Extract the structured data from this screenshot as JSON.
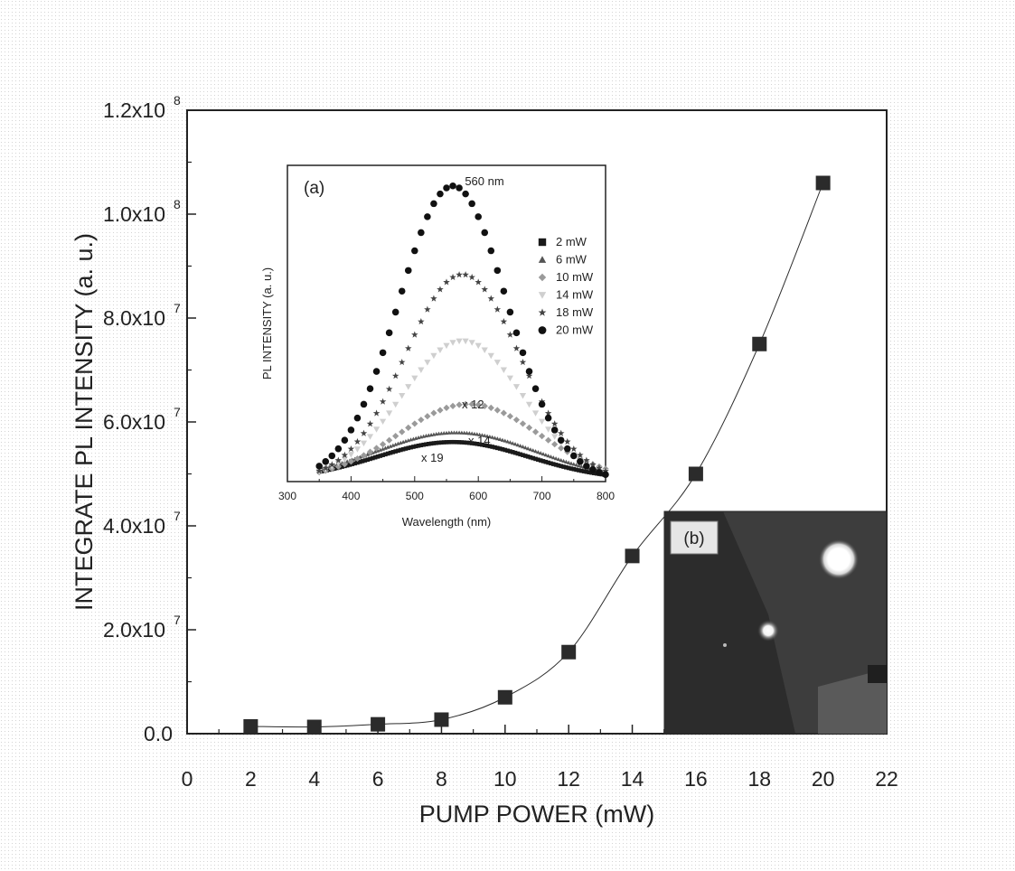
{
  "chart_data": [
    {
      "type": "scatter",
      "xlabel": "PUMP POWER (mW)",
      "ylabel": "INTEGRATE PL INTENSITY (a. u.)",
      "xlim": [
        0,
        22
      ],
      "ylim": [
        0,
        120000000
      ],
      "xticks": [
        "0",
        "2",
        "4",
        "6",
        "8",
        "10",
        "12",
        "14",
        "16",
        "18",
        "20",
        "22"
      ],
      "yticks": [
        {
          "value": 0,
          "label": "0.0"
        },
        {
          "value": 20000000,
          "label": "2.0x10",
          "exp": "7"
        },
        {
          "value": 40000000,
          "label": "4.0x10",
          "exp": "7"
        },
        {
          "value": 60000000,
          "label": "6.0x10",
          "exp": "7"
        },
        {
          "value": 80000000,
          "label": "8.0x10",
          "exp": "7"
        },
        {
          "value": 100000000,
          "label": "1.0x10",
          "exp": "8"
        },
        {
          "value": 120000000,
          "label": "1.2x10",
          "exp": "8"
        }
      ],
      "series": [
        {
          "marker": "square",
          "connected": true,
          "x": [
            2,
            4,
            6,
            8,
            10,
            12,
            14,
            16,
            18,
            20
          ],
          "y": [
            1400000,
            1300000,
            1800000,
            2700000,
            7000000,
            15700000,
            34200000,
            50000000,
            75000000,
            106000000
          ]
        }
      ],
      "color": "#2b2b2b"
    },
    {
      "type": "scatter",
      "panel_label": "(a)",
      "xlabel": "Wavelength (nm)",
      "ylabel": "PL INTENSITY (a. u.)",
      "xlim": [
        300,
        800
      ],
      "xticks": [
        "300",
        "400",
        "500",
        "600",
        "700",
        "800"
      ],
      "peak_label": "560 nm",
      "annotations": [
        "x 12",
        "x 14",
        "x 19"
      ],
      "legend": [
        "2 mW",
        "6 mW",
        "10 mW",
        "14 mW",
        "18 mW",
        "20 mW"
      ],
      "legend_markers": [
        "square",
        "triangle",
        "diamond",
        "triangle-down",
        "star",
        "circle"
      ],
      "series": [
        {
          "name": "2 mW",
          "peak": 560,
          "height": 0.12,
          "width": 120
        },
        {
          "name": "6 mW",
          "peak": 565,
          "height": 0.15,
          "width": 125
        },
        {
          "name": "10 mW",
          "peak": 585,
          "height": 0.24,
          "width": 110
        },
        {
          "name": "14 mW",
          "peak": 575,
          "height": 0.44,
          "width": 95
        },
        {
          "name": "18 mW",
          "peak": 575,
          "height": 0.65,
          "width": 90
        },
        {
          "name": "20 mW",
          "peak": 560,
          "height": 0.93,
          "width": 85
        }
      ],
      "colors": {
        "2 mW": "#1a1a1a",
        "6 mW": "#555555",
        "10 mW": "#9a9a9a",
        "14 mW": "#cfcfcf",
        "18 mW": "#444444",
        "20 mW": "#111111"
      }
    }
  ],
  "inset_b": {
    "panel_label": "(b)"
  }
}
